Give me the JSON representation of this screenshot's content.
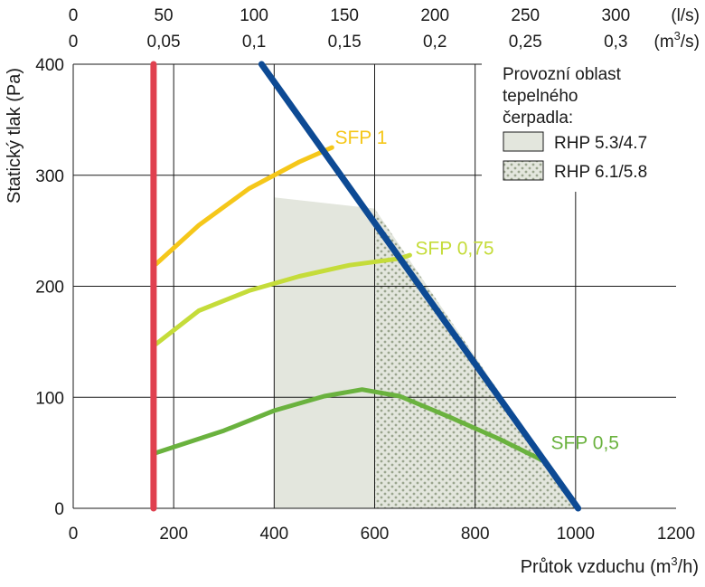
{
  "chart_data": {
    "type": "line",
    "x_axis": {
      "label": "Průtok vzduchu (m³/h)",
      "label_main": "Průtok vzduchu (m",
      "label_sup": "3",
      "label_end": "/h)",
      "min": 0,
      "max": 1200,
      "ticks": [
        0,
        200,
        400,
        600,
        800,
        1000,
        1200
      ]
    },
    "y_axis": {
      "label": "Statický tlak (Pa)",
      "min": 0,
      "max": 400,
      "ticks": [
        0,
        100,
        200,
        300,
        400
      ]
    },
    "top_axes": [
      {
        "unit": "(l/s)",
        "unit_main": "(l/s)",
        "ticks": [
          "0",
          "50",
          "100",
          "150",
          "200",
          "250",
          "300"
        ],
        "positions_m3h": [
          0,
          180,
          360,
          540,
          720,
          900,
          1080
        ]
      },
      {
        "unit": "(m³/s)",
        "unit_main": "(m",
        "unit_sup": "3",
        "unit_end": "/s)",
        "ticks": [
          "0",
          "0,05",
          "0,1",
          "0,15",
          "0,2",
          "0,25",
          "0,3"
        ],
        "positions_m3h": [
          0,
          180,
          360,
          540,
          720,
          900,
          1080
        ]
      }
    ],
    "grid": true,
    "legend": {
      "title_lines": [
        "Provozní oblast",
        "tepelného",
        "čerpadla:"
      ],
      "placement": "top-right",
      "items": [
        {
          "name": "RHP 5.3/4.7",
          "fill": "#e3e6dd",
          "pattern": "solid"
        },
        {
          "name": "RHP 6.1/5.8",
          "fill": "#e3e6dd",
          "pattern": "dotted"
        }
      ]
    },
    "regions": [
      {
        "name": "RHP 5.3/4.7",
        "pattern": "solid",
        "polygon": [
          [
            400,
            0
          ],
          [
            400,
            280
          ],
          [
            600,
            270
          ],
          [
            600,
            0
          ]
        ]
      },
      {
        "name": "RHP 6.1/5.8",
        "pattern": "dotted",
        "polygon": [
          [
            600,
            0
          ],
          [
            600,
            270
          ],
          [
            1005,
            0
          ]
        ]
      }
    ],
    "series": [
      {
        "name": "SFP 1",
        "color": "#f5c71a",
        "label_at": [
          510,
          330
        ],
        "points": [
          [
            165,
            220
          ],
          [
            250,
            255
          ],
          [
            350,
            288
          ],
          [
            450,
            312
          ],
          [
            515,
            325
          ]
        ]
      },
      {
        "name": "SFP 0,75",
        "color": "#c5dc3a",
        "label_at": [
          670,
          230
        ],
        "points": [
          [
            165,
            148
          ],
          [
            250,
            178
          ],
          [
            350,
            196
          ],
          [
            450,
            209
          ],
          [
            550,
            219
          ],
          [
            650,
            225
          ],
          [
            670,
            228
          ]
        ]
      },
      {
        "name": "SFP 0,5",
        "color": "#6ab23e",
        "label_at": [
          940,
          55
        ],
        "points": [
          [
            165,
            50
          ],
          [
            300,
            70
          ],
          [
            400,
            88
          ],
          [
            500,
            101
          ],
          [
            575,
            107
          ],
          [
            650,
            101
          ],
          [
            750,
            82
          ],
          [
            850,
            62
          ],
          [
            935,
            43
          ]
        ]
      },
      {
        "name": "",
        "color": "#e0404f",
        "points": [
          [
            160,
            0
          ],
          [
            160,
            400
          ]
        ]
      },
      {
        "name": "",
        "color": "#0d4a94",
        "points": [
          [
            375,
            400
          ],
          [
            1005,
            0
          ]
        ]
      }
    ]
  }
}
